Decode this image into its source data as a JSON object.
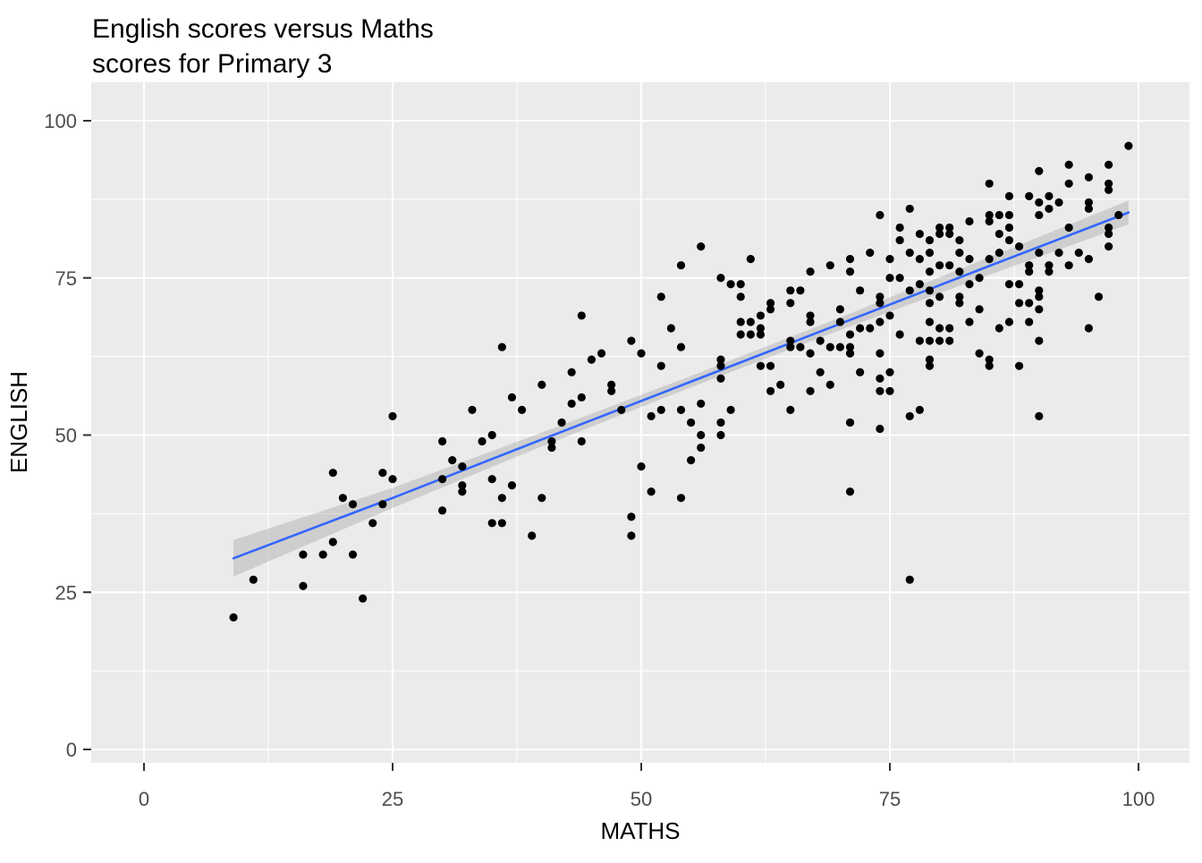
{
  "title": {
    "line1": "English scores versus Maths",
    "line2": "scores for Primary 3"
  },
  "chart_data": {
    "type": "scatter",
    "title": "English scores versus Maths scores for Primary 3",
    "xlabel": "MATHS",
    "ylabel": "ENGLISH",
    "xlim": [
      -5,
      105
    ],
    "ylim": [
      -2,
      106
    ],
    "x_ticks": [
      0,
      25,
      50,
      75,
      100
    ],
    "y_ticks": [
      0,
      25,
      50,
      75,
      100
    ],
    "x_minor_ticks": [
      12.5,
      37.5,
      62.5,
      87.5
    ],
    "y_minor_ticks": [
      12.5,
      37.5,
      62.5,
      87.5
    ],
    "grid": "white major+minor gridlines on gray panel",
    "legend": "none",
    "theme": "ggplot2 gray",
    "points": [
      [
        9,
        21
      ],
      [
        11,
        27
      ],
      [
        16,
        26
      ],
      [
        16,
        31
      ],
      [
        18,
        31
      ],
      [
        21,
        31
      ],
      [
        19,
        33
      ],
      [
        22,
        24
      ],
      [
        23,
        36
      ],
      [
        21,
        39
      ],
      [
        24,
        39
      ],
      [
        20,
        40
      ],
      [
        19,
        44
      ],
      [
        24,
        44
      ],
      [
        25,
        43
      ],
      [
        25,
        53
      ],
      [
        30,
        38
      ],
      [
        30,
        43
      ],
      [
        30,
        49
      ],
      [
        31,
        46
      ],
      [
        32,
        41
      ],
      [
        32,
        42
      ],
      [
        32,
        45
      ],
      [
        33,
        54
      ],
      [
        34,
        49
      ],
      [
        35,
        36
      ],
      [
        35,
        43
      ],
      [
        35,
        50
      ],
      [
        36,
        36
      ],
      [
        36,
        40
      ],
      [
        36,
        64
      ],
      [
        37,
        42
      ],
      [
        37,
        56
      ],
      [
        38,
        54
      ],
      [
        39,
        34
      ],
      [
        40,
        40
      ],
      [
        40,
        58
      ],
      [
        41,
        48
      ],
      [
        41,
        49
      ],
      [
        42,
        52
      ],
      [
        43,
        55
      ],
      [
        43,
        60
      ],
      [
        44,
        49
      ],
      [
        44,
        56
      ],
      [
        44,
        69
      ],
      [
        45,
        62
      ],
      [
        46,
        63
      ],
      [
        47,
        57
      ],
      [
        47,
        58
      ],
      [
        48,
        54
      ],
      [
        49,
        34
      ],
      [
        49,
        37
      ],
      [
        49,
        65
      ],
      [
        50,
        45
      ],
      [
        50,
        63
      ],
      [
        51,
        41
      ],
      [
        51,
        53
      ],
      [
        52,
        54
      ],
      [
        52,
        61
      ],
      [
        52,
        72
      ],
      [
        53,
        67
      ],
      [
        54,
        40
      ],
      [
        54,
        54
      ],
      [
        54,
        64
      ],
      [
        54,
        77
      ],
      [
        55,
        46
      ],
      [
        55,
        52
      ],
      [
        56,
        48
      ],
      [
        56,
        50
      ],
      [
        56,
        55
      ],
      [
        56,
        80
      ],
      [
        58,
        50
      ],
      [
        58,
        52
      ],
      [
        58,
        59
      ],
      [
        58,
        61
      ],
      [
        58,
        62
      ],
      [
        58,
        75
      ],
      [
        59,
        54
      ],
      [
        59,
        74
      ],
      [
        60,
        66
      ],
      [
        60,
        68
      ],
      [
        60,
        72
      ],
      [
        60,
        74
      ],
      [
        61,
        66
      ],
      [
        61,
        68
      ],
      [
        61,
        78
      ],
      [
        62,
        61
      ],
      [
        62,
        66
      ],
      [
        62,
        67
      ],
      [
        62,
        69
      ],
      [
        63,
        57
      ],
      [
        63,
        61
      ],
      [
        63,
        70
      ],
      [
        63,
        71
      ],
      [
        64,
        58
      ],
      [
        65,
        54
      ],
      [
        65,
        64
      ],
      [
        65,
        65
      ],
      [
        65,
        71
      ],
      [
        65,
        73
      ],
      [
        66,
        64
      ],
      [
        66,
        73
      ],
      [
        67,
        57
      ],
      [
        67,
        63
      ],
      [
        67,
        68
      ],
      [
        67,
        69
      ],
      [
        67,
        76
      ],
      [
        68,
        60
      ],
      [
        68,
        65
      ],
      [
        69,
        58
      ],
      [
        69,
        64
      ],
      [
        69,
        77
      ],
      [
        70,
        64
      ],
      [
        70,
        68
      ],
      [
        70,
        70
      ],
      [
        71,
        41
      ],
      [
        71,
        52
      ],
      [
        71,
        63
      ],
      [
        71,
        64
      ],
      [
        71,
        66
      ],
      [
        71,
        76
      ],
      [
        71,
        78
      ],
      [
        72,
        60
      ],
      [
        72,
        67
      ],
      [
        72,
        73
      ],
      [
        73,
        67
      ],
      [
        73,
        79
      ],
      [
        74,
        51
      ],
      [
        74,
        57
      ],
      [
        74,
        59
      ],
      [
        74,
        63
      ],
      [
        74,
        68
      ],
      [
        74,
        71
      ],
      [
        74,
        72
      ],
      [
        74,
        85
      ],
      [
        75,
        57
      ],
      [
        75,
        60
      ],
      [
        75,
        69
      ],
      [
        75,
        75
      ],
      [
        75,
        78
      ],
      [
        76,
        66
      ],
      [
        76,
        75
      ],
      [
        76,
        81
      ],
      [
        76,
        83
      ],
      [
        77,
        27
      ],
      [
        77,
        53
      ],
      [
        77,
        73
      ],
      [
        77,
        79
      ],
      [
        77,
        86
      ],
      [
        78,
        54
      ],
      [
        78,
        65
      ],
      [
        78,
        74
      ],
      [
        78,
        78
      ],
      [
        78,
        82
      ],
      [
        79,
        61
      ],
      [
        79,
        62
      ],
      [
        79,
        65
      ],
      [
        79,
        68
      ],
      [
        79,
        71
      ],
      [
        79,
        73
      ],
      [
        79,
        76
      ],
      [
        79,
        79
      ],
      [
        79,
        81
      ],
      [
        80,
        65
      ],
      [
        80,
        67
      ],
      [
        80,
        72
      ],
      [
        80,
        77
      ],
      [
        80,
        82
      ],
      [
        80,
        83
      ],
      [
        81,
        65
      ],
      [
        81,
        67
      ],
      [
        81,
        77
      ],
      [
        81,
        82
      ],
      [
        81,
        83
      ],
      [
        82,
        71
      ],
      [
        82,
        72
      ],
      [
        82,
        76
      ],
      [
        82,
        79
      ],
      [
        82,
        81
      ],
      [
        83,
        68
      ],
      [
        83,
        74
      ],
      [
        83,
        78
      ],
      [
        83,
        84
      ],
      [
        84,
        63
      ],
      [
        84,
        70
      ],
      [
        84,
        75
      ],
      [
        85,
        61
      ],
      [
        85,
        62
      ],
      [
        85,
        78
      ],
      [
        85,
        84
      ],
      [
        85,
        85
      ],
      [
        85,
        90
      ],
      [
        86,
        67
      ],
      [
        86,
        79
      ],
      [
        86,
        82
      ],
      [
        86,
        85
      ],
      [
        87,
        68
      ],
      [
        87,
        74
      ],
      [
        87,
        81
      ],
      [
        87,
        83
      ],
      [
        87,
        85
      ],
      [
        87,
        88
      ],
      [
        88,
        61
      ],
      [
        88,
        71
      ],
      [
        88,
        74
      ],
      [
        88,
        80
      ],
      [
        89,
        68
      ],
      [
        89,
        71
      ],
      [
        89,
        76
      ],
      [
        89,
        77
      ],
      [
        89,
        88
      ],
      [
        90,
        53
      ],
      [
        90,
        65
      ],
      [
        90,
        70
      ],
      [
        90,
        72
      ],
      [
        90,
        73
      ],
      [
        90,
        79
      ],
      [
        90,
        85
      ],
      [
        90,
        87
      ],
      [
        90,
        92
      ],
      [
        91,
        76
      ],
      [
        91,
        77
      ],
      [
        91,
        86
      ],
      [
        91,
        88
      ],
      [
        92,
        79
      ],
      [
        92,
        87
      ],
      [
        93,
        77
      ],
      [
        93,
        83
      ],
      [
        93,
        90
      ],
      [
        93,
        93
      ],
      [
        94,
        79
      ],
      [
        95,
        67
      ],
      [
        95,
        78
      ],
      [
        95,
        86
      ],
      [
        95,
        87
      ],
      [
        95,
        91
      ],
      [
        96,
        72
      ],
      [
        97,
        80
      ],
      [
        97,
        82
      ],
      [
        97,
        83
      ],
      [
        97,
        89
      ],
      [
        97,
        90
      ],
      [
        97,
        93
      ],
      [
        98,
        85
      ],
      [
        99,
        96
      ]
    ],
    "smooth": {
      "kind": "linear regression with confidence band",
      "x": [
        9,
        25,
        40,
        55,
        70,
        85,
        99
      ],
      "y": [
        30.4,
        40.0,
        49.3,
        58.5,
        67.7,
        76.9,
        85.4
      ],
      "ci_halfwidth": [
        2.9,
        1.6,
        1.1,
        0.9,
        1.0,
        1.4,
        1.9
      ]
    },
    "colors": {
      "point": "#000000",
      "line": "#3366FF",
      "band": "#999999",
      "band_opacity": 0.35,
      "panel": "#EBEBEB",
      "grid": "#FFFFFF",
      "tick_label": "#4D4D4D",
      "tick_mark": "#333333",
      "text": "#000000",
      "background": "#FFFFFF"
    }
  }
}
